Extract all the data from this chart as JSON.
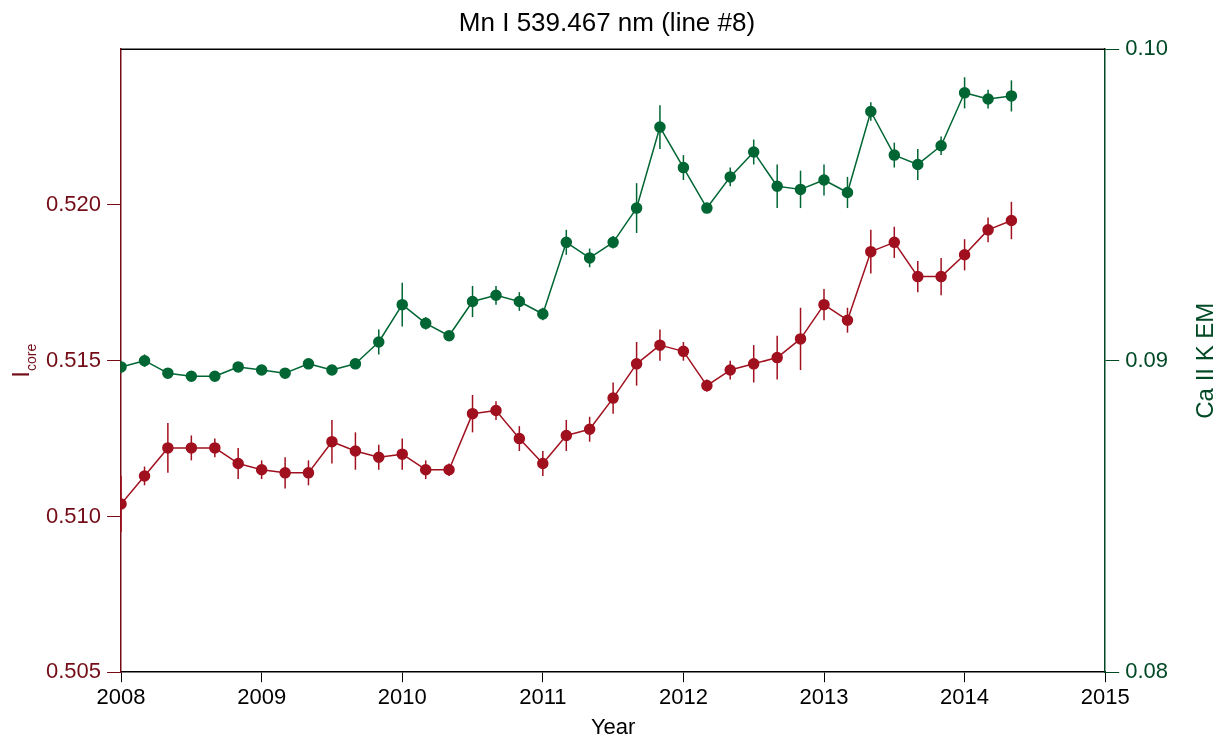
{
  "chart_data": {
    "type": "line",
    "title": "Mn I 539.467 nm (line #8)",
    "xlabel": "Year",
    "ylabel": "I$_{core}$",
    "y2label": "Ca II K EM",
    "x": [
      2008,
      2008.167,
      2008.333,
      2008.5,
      2008.667,
      2008.833,
      2009,
      2009.167,
      2009.333,
      2009.5,
      2009.667,
      2009.833,
      2010,
      2010.167,
      2010.333,
      2010.5,
      2010.667,
      2010.833,
      2011,
      2011.167,
      2011.333,
      2011.5,
      2011.667,
      2011.833,
      2012,
      2012.167,
      2012.333,
      2012.5,
      2012.667,
      2012.833,
      2013,
      2013.167,
      2013.333,
      2013.5,
      2013.667,
      2013.833,
      2014,
      2014.167,
      2014.333
    ],
    "series": [
      {
        "color": "#a0101e",
        "values": [
          0.5104,
          0.5113,
          0.5122,
          0.5122,
          0.5122,
          0.5117,
          0.5115,
          0.5114,
          0.5114,
          0.5124,
          0.5121,
          0.5119,
          0.512,
          0.5115,
          0.5115,
          0.5133,
          0.5134,
          0.5125,
          0.5117,
          0.5126,
          0.5128,
          0.5138,
          0.5149,
          0.5155,
          0.5153,
          0.5142,
          0.5147,
          0.5149,
          0.5151,
          0.5157,
          0.5168,
          0.5163,
          0.5185,
          0.5188,
          0.5177,
          0.5177,
          0.5184,
          0.5192,
          0.5195
        ],
        "errors": [
          0.0009,
          0.0003,
          0.0008,
          0.0004,
          0.0003,
          0.0005,
          0.0003,
          0.0005,
          0.0004,
          0.0007,
          0.0006,
          0.0004,
          0.0005,
          0.0003,
          0.0002,
          0.0006,
          0.0003,
          0.0004,
          0.0004,
          0.0005,
          0.0004,
          0.0005,
          0.0007,
          0.0005,
          0.0003,
          0.0002,
          0.0003,
          0.0006,
          0.0007,
          0.001,
          0.0005,
          0.0004,
          0.0007,
          0.0005,
          0.0005,
          0.0006,
          0.0005,
          0.0004,
          0.0006
        ]
      },
      {
        "color": "#006633",
        "axis": "y2",
        "values": [
          0.0898,
          0.09,
          0.0896,
          0.0895,
          0.0895,
          0.0898,
          0.0897,
          0.0896,
          0.0899,
          0.0897,
          0.0899,
          0.0906,
          0.0918,
          0.0912,
          0.0908,
          0.0919,
          0.0921,
          0.0919,
          0.0915,
          0.0938,
          0.0933,
          0.0938,
          0.0949,
          0.0975,
          0.0962,
          0.0949,
          0.0959,
          0.0967,
          0.0956,
          0.0955,
          0.0958,
          0.0954,
          0.098,
          0.0966,
          0.0963,
          0.0969,
          0.0986,
          0.0984,
          0.0985
        ],
        "errors": [
          0.0002,
          0.0002,
          0.0001,
          0.0001,
          0.0001,
          0.0001,
          0.0001,
          0.0001,
          0.0001,
          0.0001,
          0.0001,
          0.0004,
          0.0007,
          0.0002,
          0.0001,
          0.0005,
          0.0003,
          0.0003,
          0.0002,
          0.0004,
          0.0003,
          0.0002,
          0.0008,
          0.0007,
          0.0004,
          0.0001,
          0.0003,
          0.0004,
          0.0007,
          0.0006,
          0.0005,
          0.0005,
          0.0003,
          0.0004,
          0.0005,
          0.0003,
          0.0005,
          0.0003,
          0.0005
        ]
      }
    ],
    "xlim": [
      2008,
      2015
    ],
    "xticks": [
      2008,
      2009,
      2010,
      2011,
      2012,
      2013,
      2014,
      2015
    ],
    "ylim": [
      0.505,
      0.525
    ],
    "yticks": [
      0.505,
      {
        "value": 0.51,
        "label": "0.510"
      },
      0.515,
      {
        "value": 0.52,
        "label": "0.520"
      }
    ],
    "y2lim": [
      0.08,
      0.1
    ],
    "y2ticks": [
      0.08,
      0.09,
      {
        "value": 0.1,
        "label": "0.10"
      }
    ],
    "marker": "circle",
    "line_style": "solid",
    "grid": false,
    "legend": false
  }
}
